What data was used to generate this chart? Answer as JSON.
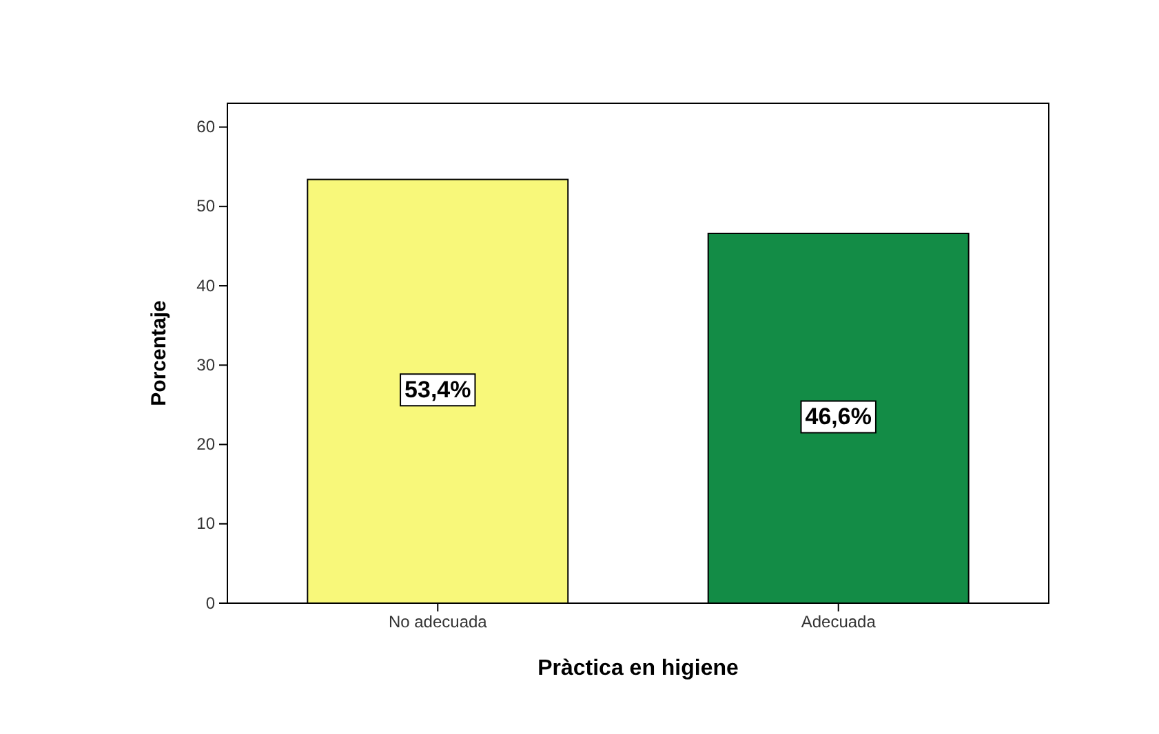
{
  "chart_data": {
    "type": "bar",
    "xlabel": "Pràctica en higiene",
    "ylabel": "Porcentaje",
    "categories": [
      "No adecuada",
      "Adecuada"
    ],
    "values": [
      53.4,
      46.6
    ],
    "colors": [
      "#f8f87a",
      "#138c46"
    ],
    "value_labels": [
      "53,4%",
      "46,6%"
    ],
    "ylim": [
      0,
      63
    ],
    "yticks": [
      0,
      10,
      20,
      30,
      40,
      50,
      60
    ],
    "grid": false
  }
}
